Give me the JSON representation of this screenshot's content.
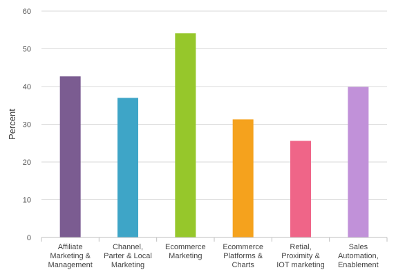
{
  "chart_data": {
    "type": "bar",
    "ylabel": "Percent",
    "xlabel": "",
    "ylim": [
      0,
      60
    ],
    "yticks": [
      0,
      10,
      20,
      30,
      40,
      50,
      60
    ],
    "grid": true,
    "categories": [
      [
        "Affiliate",
        "Marketing &",
        "Management"
      ],
      [
        "Channel,",
        "Parter & Local",
        "Marketing"
      ],
      [
        "Ecommerce",
        "Marketing"
      ],
      [
        "Ecommerce",
        "Platforms &",
        "Charts"
      ],
      [
        "Retial,",
        "Proximity &",
        "IOT marketing"
      ],
      [
        "Sales",
        "Automation,",
        "Enablement"
      ]
    ],
    "values": [
      42.7,
      37.0,
      54.1,
      31.3,
      25.6,
      39.9
    ],
    "colors": [
      "#7b5c91",
      "#3ea5c7",
      "#96c72b",
      "#f5a21d",
      "#ef6588",
      "#c191d9"
    ]
  }
}
